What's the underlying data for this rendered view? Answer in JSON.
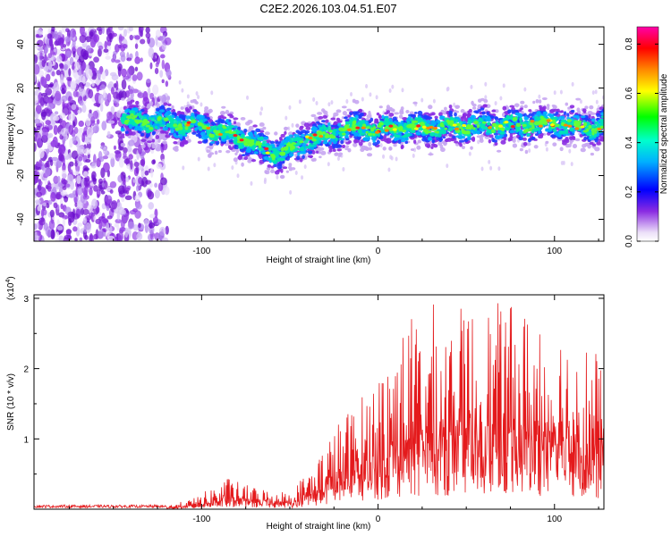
{
  "title": "C2E2.2026.103.04.51.E07",
  "chart_data": [
    {
      "type": "heatmap",
      "name": "spectrogram",
      "xlabel": "Height of straight line (km)",
      "ylabel": "Frequency (Hz)",
      "xlim": [
        -195,
        128
      ],
      "ylim": [
        -50,
        48
      ],
      "xticks": [
        "-100",
        "0",
        "100"
      ],
      "yticks": [
        "40",
        "20",
        "0",
        "-20",
        "-40"
      ],
      "colorbar": {
        "label": "Normalized spectral amplitude",
        "range": [
          0.0,
          0.87
        ],
        "ticks": [
          "0.0",
          "0.2",
          "0.4",
          "0.6",
          "0.8"
        ]
      },
      "ridge": {
        "x": [
          -140,
          -120,
          -100,
          -90,
          -80,
          -70,
          -60,
          -55,
          -50,
          -45,
          -40,
          -30,
          -20,
          -10,
          0,
          20,
          40,
          60,
          80,
          100,
          110,
          120,
          128
        ],
        "y": [
          5,
          4,
          2,
          0,
          -2,
          -6,
          -9,
          -10,
          -8,
          -6,
          -3,
          -2,
          1,
          2,
          1,
          2,
          2,
          3,
          3,
          4,
          3,
          2,
          3
        ]
      }
    },
    {
      "type": "line",
      "name": "snr",
      "xlabel": "Height of straight line (km)",
      "ylabel": "SNR (10 * v/v)",
      "multiplier": "(x10",
      "multiplier_exp": "4",
      "xlim": [
        -195,
        128
      ],
      "ylim": [
        0,
        3.05
      ],
      "xticks": [
        "-100",
        "0",
        "100"
      ],
      "yticks": [
        "1",
        "2",
        "3"
      ],
      "color": "#e41a1c",
      "envelope": {
        "x": [
          -195,
          -120,
          -105,
          -95,
          -85,
          -75,
          -65,
          -50,
          -40,
          -30,
          -20,
          -10,
          0,
          10,
          20,
          30,
          40,
          60,
          80,
          100,
          110,
          128
        ],
        "y": [
          0.05,
          0.05,
          0.15,
          0.3,
          0.45,
          0.35,
          0.3,
          0.25,
          0.55,
          0.95,
          1.35,
          1.6,
          2.0,
          2.5,
          2.8,
          2.95,
          2.85,
          2.95,
          2.9,
          2.75,
          2.6,
          2.2
        ]
      }
    }
  ]
}
